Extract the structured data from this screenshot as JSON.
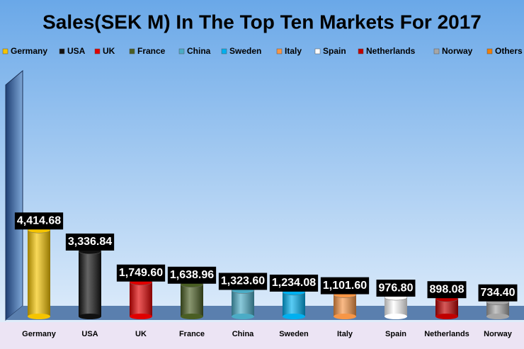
{
  "chart_data": {
    "type": "bar",
    "title": "Sales(SEK M) In The Top Ten Markets For 2017",
    "categories": [
      "Germany",
      "USA",
      "UK",
      "France",
      "China",
      "Sweden",
      "Italy",
      "Spain",
      "Netherlands",
      "Norway"
    ],
    "values": [
      4414.68,
      3336.84,
      1749.6,
      1638.96,
      1323.6,
      1234.08,
      1101.6,
      976.8,
      898.08,
      734.4
    ],
    "value_labels": [
      "4,414.68",
      "3,336.84",
      "1,749.60",
      "1,638.96",
      "1,323.60",
      "1,234.08",
      "1,101.60",
      "976.80",
      "898.08",
      "734.40"
    ],
    "colors": [
      "#f5c400",
      "#111111",
      "#e00000",
      "#4a5e23",
      "#4bacc6",
      "#00b0f0",
      "#f79646",
      "#ffffff",
      "#c00000",
      "#a6a6a6"
    ],
    "legend": [
      {
        "name": "Germany",
        "color": "#f5c400"
      },
      {
        "name": "USA",
        "color": "#111111"
      },
      {
        "name": "UK",
        "color": "#e00000"
      },
      {
        "name": "France",
        "color": "#4a5e23"
      },
      {
        "name": "China",
        "color": "#4bacc6"
      },
      {
        "name": "Sweden",
        "color": "#00b0f0"
      },
      {
        "name": "Italy",
        "color": "#f79646"
      },
      {
        "name": "Spain",
        "color": "#ffffff"
      },
      {
        "name": "Netherlands",
        "color": "#c00000"
      },
      {
        "name": "Norway",
        "color": "#a6a6a6"
      },
      {
        "name": "Others",
        "color": "#f07f09"
      }
    ],
    "ylim": [
      0,
      12500
    ]
  }
}
